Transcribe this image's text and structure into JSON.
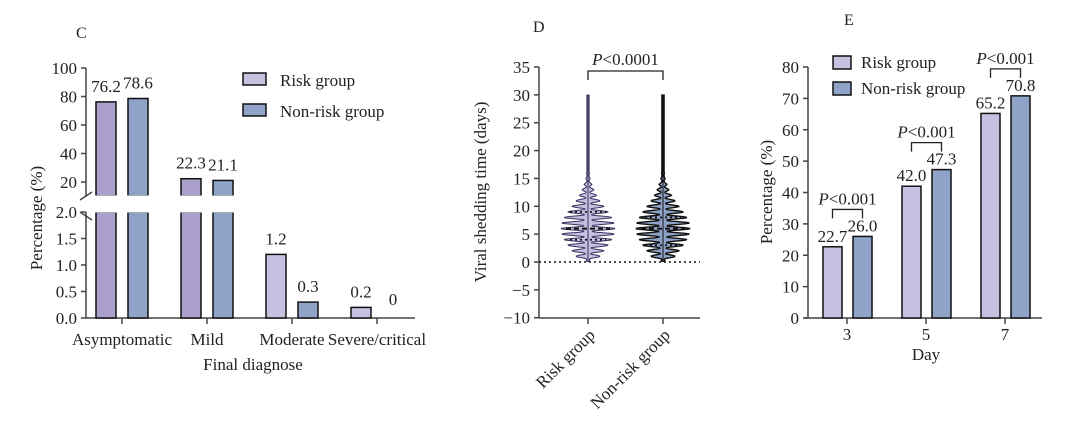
{
  "colors": {
    "risk": "#c8c0e0",
    "risk_dark": "#ab9fcc",
    "nonrisk": "#8fa2c8",
    "stroke": "#111111"
  },
  "chart_data": [
    {
      "panel": "C",
      "type": "bar",
      "title": "",
      "xlabel": "Final diagnose",
      "ylabel": "Percentage (%)",
      "categories": [
        "Asymptomatic",
        "Mild",
        "Moderate",
        "Severe/critical"
      ],
      "series": [
        {
          "name": "Risk group",
          "values": [
            76.2,
            22.3,
            1.2,
            0.2
          ],
          "labels": [
            "76.2",
            "22.3",
            "1.2",
            "0.2"
          ]
        },
        {
          "name": "Non-risk group",
          "values": [
            78.6,
            21.1,
            0.3,
            0
          ],
          "labels": [
            "78.6",
            "21.1",
            "0.3",
            "0"
          ]
        }
      ],
      "axis_break": true,
      "upper_ticks": [
        "20",
        "40",
        "60",
        "80",
        "100"
      ],
      "lower_ticks": [
        "0.0",
        "0.5",
        "1.0",
        "1.5",
        "2.0"
      ],
      "ylim_upper": [
        10,
        100
      ],
      "ylim_lower": [
        0,
        2.0
      ],
      "legend": [
        "Risk group",
        "Non-risk group"
      ],
      "legend_position": "top-right"
    },
    {
      "panel": "D",
      "type": "violin",
      "ylabel": "Viral shedding time (days)",
      "categories": [
        "Risk group",
        "Non-risk group"
      ],
      "ylim": [
        -10,
        35
      ],
      "yticks": [
        "35",
        "30",
        "25",
        "20",
        "15",
        "10",
        "5",
        "0",
        "−5",
        "−10"
      ],
      "ytick_values": [
        35,
        30,
        25,
        20,
        15,
        10,
        5,
        0,
        -5,
        -10
      ],
      "series": [
        {
          "name": "Risk group",
          "min": 0,
          "q1": 4,
          "median": 6,
          "q3": 9,
          "max": 30
        },
        {
          "name": "Non-risk group",
          "min": 0,
          "q1": 3,
          "median": 6,
          "q3": 8,
          "max": 30
        }
      ],
      "reference_line": 0,
      "annotation": "<0.0001",
      "annotation_prefix": "P"
    },
    {
      "panel": "E",
      "type": "bar",
      "xlabel": "Day",
      "ylabel": "Percentage (%)",
      "categories": [
        "3",
        "5",
        "7"
      ],
      "ylim": [
        0,
        80
      ],
      "yticks": [
        "0",
        "10",
        "20",
        "30",
        "40",
        "50",
        "60",
        "70",
        "80"
      ],
      "series": [
        {
          "name": "Risk group",
          "values": [
            22.7,
            42.0,
            65.2
          ],
          "labels": [
            "22.7",
            "42.0",
            "65.2"
          ]
        },
        {
          "name": "Non-risk group",
          "values": [
            26.0,
            47.3,
            70.8
          ],
          "labels": [
            "26.0",
            "47.3",
            "70.8"
          ]
        }
      ],
      "annotations": [
        "<0.001",
        "<0.001",
        "<0.001"
      ],
      "annotation_prefix": "P",
      "legend": [
        "Risk group",
        "Non-risk group"
      ],
      "legend_position": "top-left"
    }
  ]
}
